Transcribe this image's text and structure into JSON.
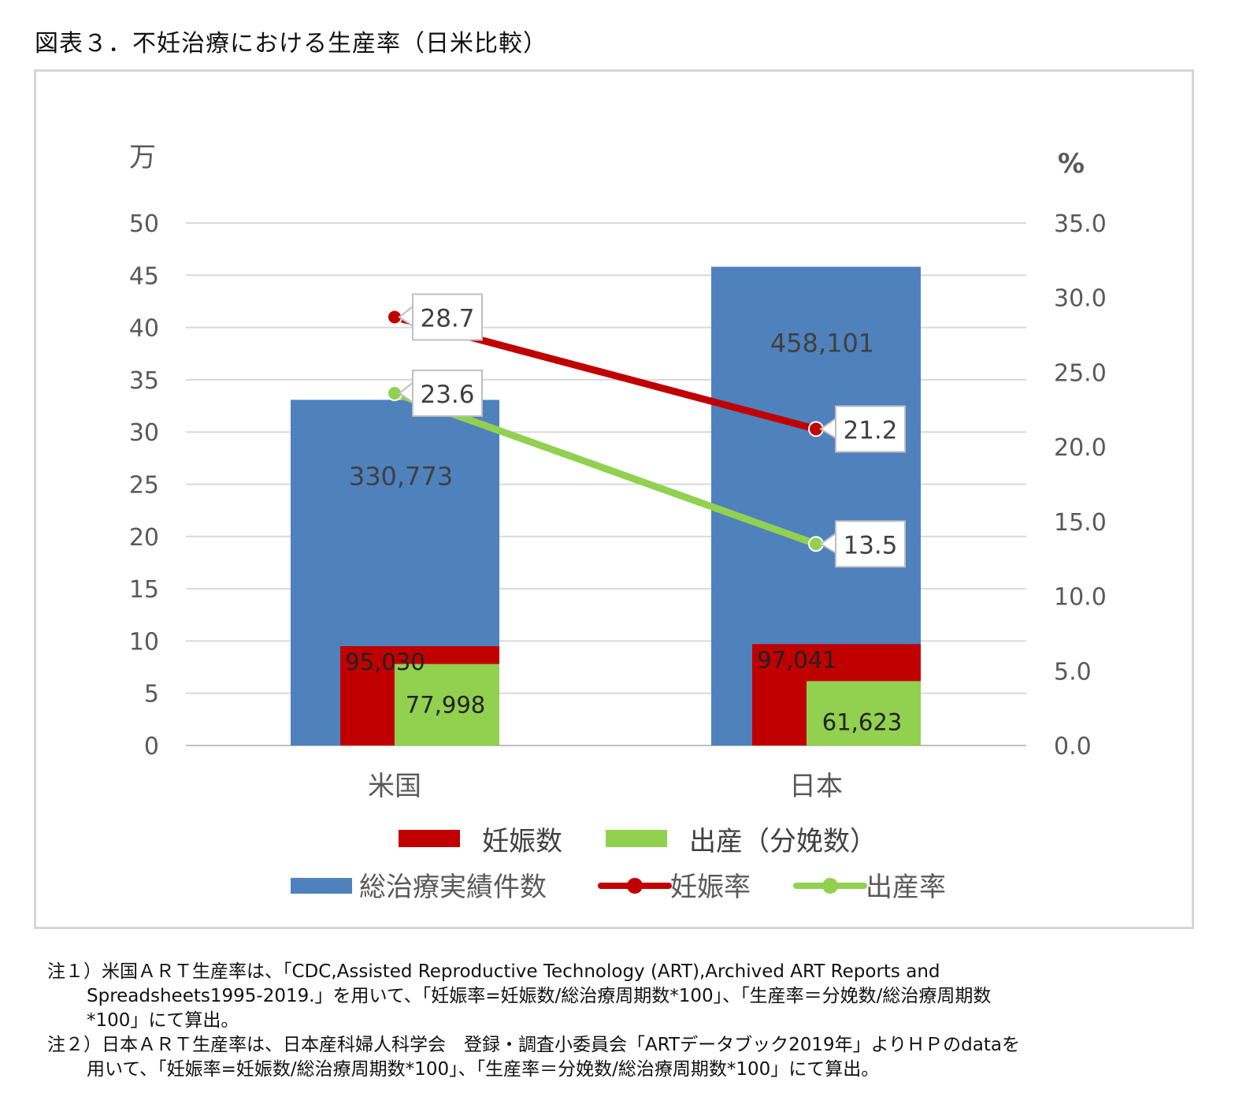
{
  "figure": {
    "title": "図表３．不妊治療における生産率（日米比較）"
  },
  "chart_data": {
    "type": "bar",
    "categories": [
      "米国",
      "日本"
    ],
    "left_axis": {
      "unit_label": "万",
      "ylim": [
        0,
        50
      ],
      "ticks": [
        "0",
        "5",
        "10",
        "15",
        "20",
        "25",
        "30",
        "35",
        "40",
        "45",
        "50"
      ]
    },
    "right_axis": {
      "unit_label": "%",
      "ylim": [
        0,
        35
      ],
      "ticks": [
        "0.0",
        "5.0",
        "10.0",
        "15.0",
        "20.0",
        "25.0",
        "30.0",
        "35.0"
      ]
    },
    "bar_series": [
      {
        "name": "総治療実績件数",
        "color": "#4f81bd",
        "values": [
          330773,
          458101
        ],
        "labels": [
          "330,773",
          "458,101"
        ]
      },
      {
        "name": "妊娠数",
        "color": "#c00000",
        "values": [
          95030,
          97041
        ],
        "labels": [
          "95,030",
          "97,041"
        ]
      },
      {
        "name": "出産（分娩数）",
        "color": "#92d050",
        "values": [
          77998,
          61623
        ],
        "labels": [
          "77,998",
          "61,623"
        ]
      }
    ],
    "line_series": [
      {
        "name": "妊娠率",
        "color": "#c00000",
        "values": [
          28.7,
          21.2
        ],
        "labels": [
          "28.7",
          "21.2"
        ]
      },
      {
        "name": "出産率",
        "color": "#92d050",
        "values": [
          23.6,
          13.5
        ],
        "labels": [
          "23.6",
          "13.5"
        ]
      }
    ],
    "grid": true,
    "legend_position": "bottom"
  },
  "notes": {
    "note1_line1": "注１）米国ＡＲＴ生産率は、「CDC,Assisted Reproductive Technology (ART),Archived ART Reports and",
    "note1_line2": "Spreadsheets1995-2019.」を用いて、「妊娠率=妊娠数/総治療周期数*100」、「生産率＝分娩数/総治療周期数",
    "note1_line3": "*100」にて算出。",
    "note2_line1": "注２）日本ＡＲＴ生産率は、日本産科婦人科学会　登録・調査小委員会「ARTデータブック2019年」よりＨＰのdataを",
    "note2_line2": "用いて、「妊娠率=妊娠数/総治療周期数*100」、「生産率＝分娩数/総治療周期数*100」にて算出。"
  }
}
